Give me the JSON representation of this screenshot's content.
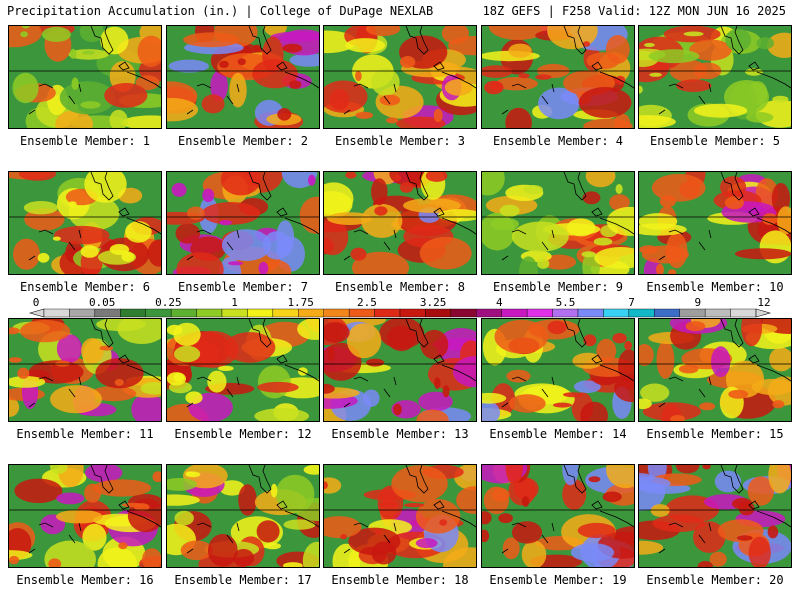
{
  "header": {
    "left": "Precipitation Accumulation (in.) | College of DuPage NEXLAB",
    "right": "18Z GEFS | F258 Valid: 12Z MON JUN 16 2025"
  },
  "colorbar": {
    "labels": [
      "0",
      "0.05",
      "0.25",
      "1",
      "1.75",
      "2.5",
      "3.25",
      "4",
      "5.5",
      "7",
      "9",
      "12"
    ],
    "colors": [
      "#d8d8d8",
      "#a8a8a8",
      "#7a7a7a",
      "#2f7d2f",
      "#3c963c",
      "#5db030",
      "#8ecb25",
      "#c8e020",
      "#f3f31a",
      "#f7d41a",
      "#f5ac18",
      "#f3861a",
      "#ee5a18",
      "#e02a18",
      "#c81810",
      "#a80c0c",
      "#8a0630",
      "#a00f80",
      "#c818c0",
      "#e030e8",
      "#b070f0",
      "#7a8af8",
      "#3ad2f4",
      "#12b8c8",
      "#3c6ec8",
      "#9e9e9e",
      "#bcbcbc",
      "#d8d8d8"
    ]
  },
  "members": [
    {
      "label": "Ensemble Member: 1",
      "intensity": 0.25
    },
    {
      "label": "Ensemble Member: 2",
      "intensity": 0.8
    },
    {
      "label": "Ensemble Member: 3",
      "intensity": 0.55
    },
    {
      "label": "Ensemble Member: 4",
      "intensity": 0.7
    },
    {
      "label": "Ensemble Member: 5",
      "intensity": 0.3
    },
    {
      "label": "Ensemble Member: 6",
      "intensity": 0.4
    },
    {
      "label": "Ensemble Member: 7",
      "intensity": 0.85
    },
    {
      "label": "Ensemble Member: 8",
      "intensity": 0.65
    },
    {
      "label": "Ensemble Member: 9",
      "intensity": 0.35
    },
    {
      "label": "Ensemble Member: 10",
      "intensity": 0.6
    },
    {
      "label": "Ensemble Member: 11",
      "intensity": 0.55
    },
    {
      "label": "Ensemble Member: 12",
      "intensity": 0.45
    },
    {
      "label": "Ensemble Member: 13",
      "intensity": 0.75
    },
    {
      "label": "Ensemble Member: 14",
      "intensity": 0.65
    },
    {
      "label": "Ensemble Member: 15",
      "intensity": 0.6
    },
    {
      "label": "Ensemble Member: 16",
      "intensity": 0.6
    },
    {
      "label": "Ensemble Member: 17",
      "intensity": 0.45
    },
    {
      "label": "Ensemble Member: 18",
      "intensity": 0.7
    },
    {
      "label": "Ensemble Member: 19",
      "intensity": 0.8
    },
    {
      "label": "Ensemble Member: 20",
      "intensity": 0.8
    }
  ]
}
